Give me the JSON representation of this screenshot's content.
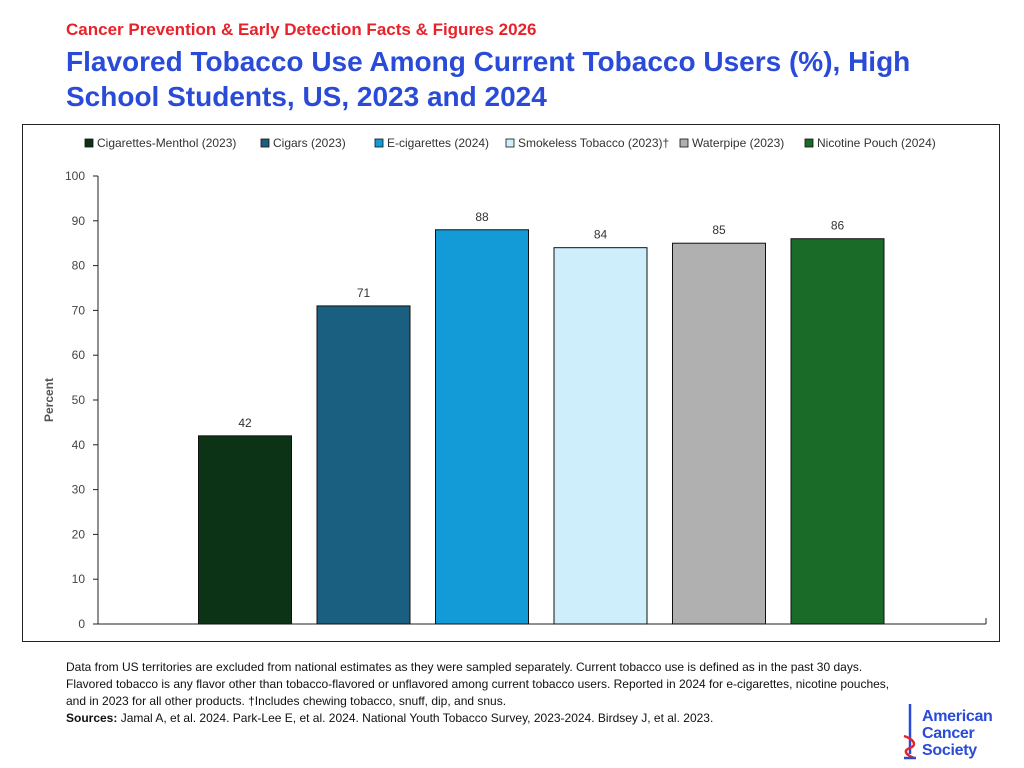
{
  "header": {
    "supertitle": "Cancer Prevention & Early Detection Facts & Figures 2026",
    "title": "Flavored Tobacco Use Among Current Tobacco Users (%), High School Students, US, 2023 and 2024"
  },
  "chart_data": {
    "type": "bar",
    "categories": [
      "Cigarettes-Menthol (2023)",
      "Cigars (2023)",
      "E-cigarettes (2024)",
      "Smokeless Tobacco (2023)†",
      "Waterpipe (2023)",
      "Nicotine Pouch (2024)"
    ],
    "values": [
      42,
      71,
      88,
      84,
      85,
      86
    ],
    "colors": [
      "#0d3316",
      "#1a5e80",
      "#129bd6",
      "#cdeefa",
      "#b0b0b0",
      "#1a6b27"
    ],
    "ylabel": "Percent",
    "ylim": [
      0,
      100
    ],
    "yticks": [
      0,
      10,
      20,
      30,
      40,
      50,
      60,
      70,
      80,
      90,
      100
    ],
    "legend_position": "top",
    "grid": false,
    "data_labels": true
  },
  "footer": {
    "note_line1": "Data from US territories are excluded from national estimates as they were sampled separately. Current tobacco use is defined as in the past 30 days.",
    "note_line2": "Flavored tobacco is any flavor other than tobacco-flavored or unflavored among current tobacco users. Reported in 2024 for e-cigarettes, nicotine pouches,",
    "note_line3": "and in 2023 for all other products. †Includes chewing tobacco, snuff, dip, and snus.",
    "sources_label": "Sources:",
    "sources_text": " Jamal A, et al. 2024. Park-Lee E, et al. 2024. National Youth Tobacco Survey, 2023-2024. Birdsey J, et al. 2023."
  },
  "logo": {
    "line1": "American",
    "line2": "Cancer",
    "line3": "Society",
    "color": "#2a4bd8",
    "accent": "#e8222a",
    "icon": "sword-icon"
  }
}
